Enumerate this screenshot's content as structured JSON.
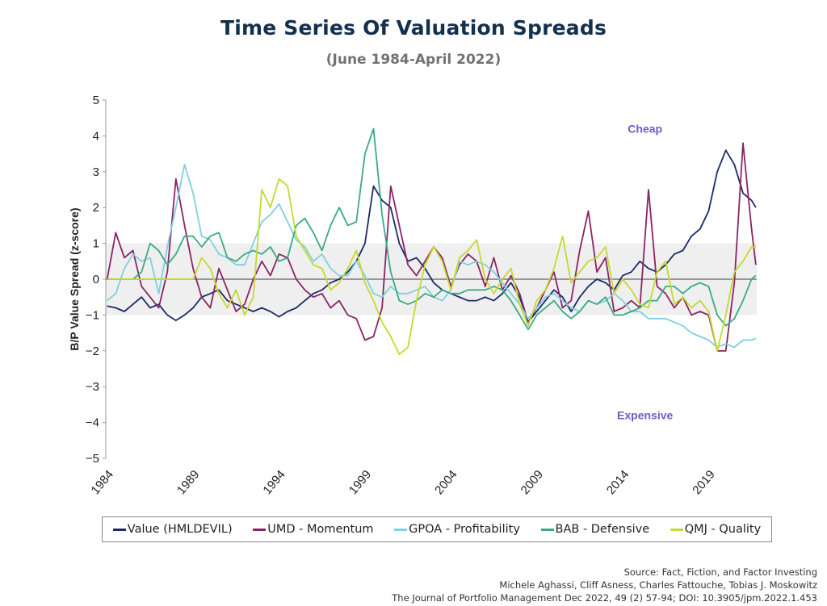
{
  "chart_data": {
    "type": "line",
    "title": "Time Series Of Valuation Spreads",
    "subtitle": "(June 1984-April 2022)",
    "xlabel": "",
    "ylabel": "B/P Value Spread  (z-score)",
    "ylim": [
      -5,
      5
    ],
    "xlim": [
      1984.42,
      2022.3
    ],
    "yticks": [
      "5",
      "4",
      "3",
      "2",
      "1",
      "0",
      "−1",
      "−2",
      "−3",
      "−4",
      "−5"
    ],
    "ytick_values": [
      5,
      4,
      3,
      2,
      1,
      0,
      -1,
      -2,
      -3,
      -4,
      -5
    ],
    "xticks": [
      "1984",
      "1989",
      "1994",
      "1999",
      "2004",
      "2009",
      "2014",
      "2019"
    ],
    "xtick_values": [
      1984.42,
      1989.42,
      1994.42,
      1999.42,
      2004.42,
      2009.42,
      2014.42,
      2019.42
    ],
    "band": {
      "from": -1,
      "to": 1,
      "color": "#efefef"
    },
    "zero_line_color": "#7a7a7a",
    "grid": false,
    "legend_position": "bottom",
    "annotations": [
      {
        "text": "Cheap",
        "x": 2015.8,
        "y": 4.2
      },
      {
        "text": "Expensive",
        "x": 2015.8,
        "y": -3.8
      }
    ],
    "x": [
      1984.5,
      1985,
      1985.5,
      1986,
      1986.5,
      1987,
      1987.5,
      1988,
      1988.5,
      1989,
      1989.5,
      1990,
      1990.5,
      1991,
      1991.5,
      1992,
      1992.5,
      1993,
      1993.5,
      1994,
      1994.5,
      1995,
      1995.5,
      1996,
      1996.5,
      1997,
      1997.5,
      1998,
      1998.5,
      1999,
      1999.5,
      2000,
      2000.5,
      2001,
      2001.5,
      2002,
      2002.5,
      2003,
      2003.5,
      2004,
      2004.5,
      2005,
      2005.5,
      2006,
      2006.5,
      2007,
      2007.5,
      2008,
      2008.5,
      2009,
      2009.5,
      2010,
      2010.5,
      2011,
      2011.5,
      2012,
      2012.5,
      2013,
      2013.5,
      2014,
      2014.5,
      2015,
      2015.5,
      2016,
      2016.5,
      2017,
      2017.5,
      2018,
      2018.5,
      2019,
      2019.5,
      2020,
      2020.5,
      2021,
      2021.5,
      2022,
      2022.25
    ],
    "series": [
      {
        "name": "Value (HMLDEVIL)",
        "color": "#1b2a6b",
        "values": [
          -0.75,
          -0.8,
          -0.9,
          -0.7,
          -0.5,
          -0.8,
          -0.7,
          -1.0,
          -1.15,
          -1.0,
          -0.8,
          -0.5,
          -0.4,
          -0.3,
          -0.6,
          -0.7,
          -0.8,
          -0.9,
          -0.8,
          -0.9,
          -1.05,
          -0.9,
          -0.8,
          -0.6,
          -0.4,
          -0.3,
          -0.1,
          0.0,
          0.2,
          0.5,
          1.0,
          2.6,
          2.2,
          2.0,
          1.0,
          0.5,
          0.6,
          0.3,
          -0.1,
          -0.3,
          -0.4,
          -0.5,
          -0.6,
          -0.6,
          -0.5,
          -0.6,
          -0.4,
          -0.1,
          -0.5,
          -1.2,
          -0.9,
          -0.6,
          -0.3,
          -0.5,
          -0.9,
          -0.5,
          -0.2,
          0.0,
          -0.1,
          -0.3,
          0.1,
          0.2,
          0.5,
          0.3,
          0.2,
          0.4,
          0.7,
          0.8,
          1.2,
          1.4,
          1.9,
          3.0,
          3.6,
          3.2,
          2.4,
          2.2,
          2.0
        ]
      },
      {
        "name": "UMD - Momentum",
        "color": "#8b2466",
        "values": [
          0.0,
          1.3,
          0.6,
          0.8,
          -0.2,
          -0.5,
          -0.8,
          0.2,
          2.8,
          1.5,
          0.3,
          -0.5,
          -0.8,
          0.3,
          -0.3,
          -0.9,
          -0.7,
          0.0,
          0.5,
          0.1,
          0.7,
          0.6,
          0.0,
          -0.3,
          -0.5,
          -0.4,
          -0.8,
          -0.6,
          -1.0,
          -1.1,
          -1.7,
          -1.6,
          -0.8,
          2.6,
          1.5,
          0.4,
          0.1,
          0.5,
          0.9,
          0.6,
          -0.2,
          0.4,
          0.7,
          0.5,
          -0.2,
          0.6,
          -0.3,
          0.1,
          -0.4,
          -1.2,
          -0.8,
          -0.3,
          0.2,
          -0.8,
          -0.6,
          0.8,
          1.9,
          0.2,
          0.6,
          -0.9,
          -0.8,
          -0.6,
          -0.8,
          2.5,
          -0.2,
          -0.4,
          -0.8,
          -0.5,
          -1.0,
          -0.9,
          -1.0,
          -2.0,
          -2.0,
          -0.1,
          3.8,
          1.4,
          0.4
        ]
      },
      {
        "name": "GPOA - Profitability",
        "color": "#7fd0e0",
        "values": [
          -0.6,
          -0.4,
          0.3,
          0.7,
          0.5,
          0.6,
          -0.4,
          0.9,
          2.0,
          3.2,
          2.4,
          1.2,
          1.1,
          0.7,
          0.6,
          0.4,
          0.4,
          1.0,
          1.6,
          1.8,
          2.1,
          1.6,
          1.1,
          0.9,
          0.5,
          0.7,
          0.3,
          0.1,
          0.1,
          0.5,
          0.1,
          -0.4,
          -0.5,
          -0.2,
          -0.4,
          -0.4,
          -0.3,
          -0.2,
          -0.5,
          -0.6,
          -0.3,
          0.5,
          0.4,
          0.5,
          0.4,
          0.2,
          -0.1,
          -0.4,
          -0.7,
          -1.1,
          -0.8,
          -0.5,
          -0.4,
          -0.6,
          -0.8,
          -0.9,
          -0.6,
          -0.7,
          -0.6,
          -0.4,
          -0.6,
          -0.9,
          -0.9,
          -1.1,
          -1.1,
          -1.1,
          -1.2,
          -1.3,
          -1.5,
          -1.6,
          -1.7,
          -1.9,
          -1.8,
          -1.9,
          -1.7,
          -1.7,
          -1.65
        ]
      },
      {
        "name": "BAB - Defensive",
        "color": "#3aaa86",
        "values": [
          0.0,
          0.0,
          0.0,
          0.0,
          0.2,
          1.0,
          0.8,
          0.4,
          0.7,
          1.2,
          1.2,
          0.9,
          1.2,
          1.3,
          0.6,
          0.5,
          0.7,
          0.8,
          0.7,
          0.9,
          0.5,
          0.6,
          1.5,
          1.7,
          1.3,
          0.8,
          1.5,
          2.0,
          1.5,
          1.6,
          3.5,
          4.2,
          1.8,
          0.2,
          -0.6,
          -0.7,
          -0.6,
          -0.4,
          -0.5,
          -0.3,
          -0.4,
          -0.4,
          -0.3,
          -0.3,
          -0.3,
          -0.2,
          -0.3,
          -0.6,
          -1.0,
          -1.4,
          -1.0,
          -0.8,
          -0.6,
          -0.9,
          -1.1,
          -0.9,
          -0.6,
          -0.7,
          -0.5,
          -1.0,
          -1.0,
          -0.9,
          -0.8,
          -0.6,
          -0.6,
          -0.2,
          -0.2,
          -0.4,
          -0.2,
          -0.1,
          -0.2,
          -1.0,
          -1.3,
          -1.1,
          -0.6,
          0.0,
          0.1
        ]
      },
      {
        "name": "QMJ - Quality",
        "color": "#c5d92f",
        "values": [
          0.0,
          0.0,
          0.0,
          0.0,
          0.0,
          0.0,
          0.0,
          0.0,
          0.0,
          0.0,
          0.0,
          0.6,
          0.3,
          -0.4,
          -0.8,
          -0.3,
          -1.0,
          -0.5,
          2.5,
          2.0,
          2.8,
          2.6,
          1.2,
          0.8,
          0.4,
          0.3,
          -0.3,
          -0.1,
          0.3,
          0.8,
          -0.1,
          -0.6,
          -1.2,
          -1.6,
          -2.1,
          -1.9,
          -0.6,
          0.4,
          0.9,
          0.5,
          -0.3,
          0.6,
          0.8,
          1.1,
          0.0,
          -0.4,
          0.0,
          0.3,
          -0.7,
          -1.3,
          -0.6,
          -0.3,
          0.3,
          1.2,
          -0.1,
          0.2,
          0.5,
          0.6,
          0.9,
          -0.4,
          0.0,
          -0.3,
          -0.7,
          -0.8,
          0.2,
          0.5,
          -0.7,
          -0.5,
          -0.8,
          -0.6,
          -0.9,
          -2.0,
          -1.0,
          0.2,
          0.5,
          0.9,
          0.9
        ]
      }
    ]
  },
  "legend": [
    {
      "label": "Value (HMLDEVIL)",
      "color": "#1b2a6b"
    },
    {
      "label": "UMD - Momentum",
      "color": "#8b2466"
    },
    {
      "label": "GPOA - Profitability",
      "color": "#7fd0e0"
    },
    {
      "label": "BAB - Defensive",
      "color": "#3aaa86"
    },
    {
      "label": "QMJ - Quality",
      "color": "#c5d92f"
    }
  ],
  "source": {
    "line1": "Source: Fact, Fiction, and Factor Investing",
    "line2": "Michele Aghassi, Cliff Asness, Charles Fattouche, Tobias J. Moskowitz",
    "line3": "The Journal of Portfolio Management Dec 2022, 49 (2) 57-94; DOI: 10.3905/jpm.2022.1.453"
  }
}
